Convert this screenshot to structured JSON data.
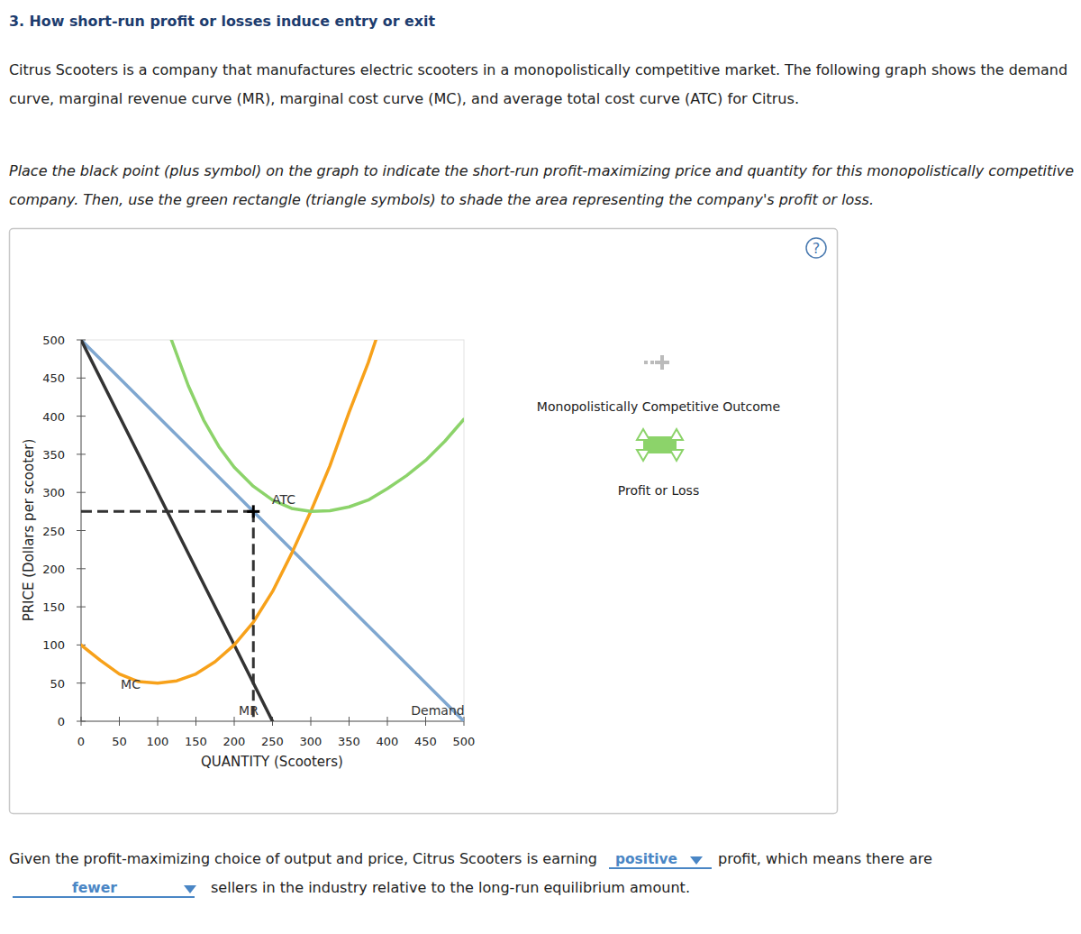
{
  "page": {
    "heading": "3. How short-run profit or losses induce entry or exit",
    "intro": [
      "Citrus Scooters is a company that manufactures electric scooters in a monopolistically competitive market. The following graph shows the demand",
      "curve, marginal revenue curve (MR), marginal cost curve (MC), and average total cost curve (ATC) for Citrus."
    ],
    "instruction": [
      "Place the black point (plus symbol) on the graph to indicate the short-run profit-maximizing price and quantity for this monopolistically competitive",
      "company. Then, use the green rectangle (triangle symbols) to shade the area representing the company's profit or loss."
    ],
    "help": "?",
    "palette": {
      "point_label": "Monopolistically Competitive Outcome",
      "area_label": "Profit or Loss"
    },
    "answer": {
      "before": "Given the profit-maximizing choice of output and price, Citrus Scooters is earning",
      "choice1": "positive",
      "middle": "profit, which means there are",
      "choice2": "fewer",
      "after": "sellers in the industry relative to the long-run equilibrium amount."
    }
  },
  "chart_data": {
    "type": "line",
    "x_label": "QUANTITY (Scooters)",
    "y_label": "PRICE (Dollars per scooter)",
    "xlim": [
      0,
      500
    ],
    "ylim": [
      0,
      500
    ],
    "xticks": [
      0,
      50,
      100,
      150,
      200,
      250,
      300,
      350,
      400,
      450,
      500
    ],
    "yticks": [
      0,
      50,
      100,
      150,
      200,
      250,
      300,
      350,
      400,
      450,
      500
    ],
    "grid": false,
    "series": [
      {
        "name": "Demand",
        "color": "#7fa7d0",
        "x": [
          0,
          500
        ],
        "values": [
          500,
          0
        ]
      },
      {
        "name": "MR",
        "color": "#333333",
        "x": [
          0,
          250
        ],
        "values": [
          500,
          0
        ]
      },
      {
        "name": "MC",
        "color": "#f7a11a",
        "x": [
          0,
          25,
          50,
          75,
          100,
          125,
          150,
          175,
          200,
          225,
          250,
          275,
          300,
          325,
          350,
          375,
          385
        ],
        "values": [
          100,
          80,
          62,
          52,
          50,
          53,
          62,
          78,
          100,
          130,
          170,
          220,
          275,
          335,
          405,
          470,
          500
        ]
      },
      {
        "name": "ATC",
        "color": "#8cd36a",
        "x": [
          118,
          140,
          160,
          180,
          200,
          225,
          250,
          275,
          300,
          325,
          350,
          375,
          400,
          425,
          450,
          475,
          500
        ],
        "values": [
          500,
          440,
          395,
          360,
          333,
          308,
          290,
          279,
          275,
          276,
          281,
          290,
          305,
          322,
          342,
          367,
          396
        ]
      }
    ],
    "guide_point": {
      "x": 225,
      "y": 275
    }
  }
}
